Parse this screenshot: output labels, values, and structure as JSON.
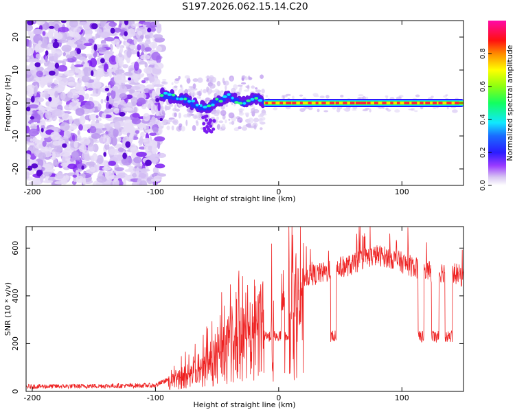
{
  "title": "S197.2026.062.15.14.C20",
  "colors": {
    "snr_line": "#ee2222",
    "background": "#ffffff",
    "axis": "#000000"
  },
  "chart_data": [
    {
      "type": "heatmap",
      "name": "spectrogram",
      "xlabel": "Height of straight line (km)",
      "ylabel": "Frequency (Hz)",
      "xlim": [
        -205,
        150
      ],
      "ylim": [
        -25,
        25
      ],
      "xticks": [
        -200,
        -100,
        0,
        100
      ],
      "yticks": [
        -20,
        -10,
        0,
        10,
        20
      ],
      "colorbar": {
        "label": "Normalized spectral amplitude",
        "range": [
          0,
          1
        ],
        "ticks": [
          0.0,
          0.2,
          0.4,
          0.6,
          0.8
        ],
        "colormap": "rainbow (white-purple-blue-cyan-green-yellow-red-magenta)"
      },
      "noise_region_x": [
        -205,
        -95
      ],
      "transition_region_x": [
        -95,
        -12
      ],
      "strong_tone": {
        "x_start": -12,
        "x_end": 150,
        "frequency_hz": 0,
        "normalized_amplitude": 0.9
      },
      "ridge": [
        [
          -95,
          2.5
        ],
        [
          -85,
          2.0
        ],
        [
          -75,
          1.0
        ],
        [
          -65,
          -1.0
        ],
        [
          -58,
          -1.5
        ],
        [
          -50,
          0.5
        ],
        [
          -40,
          2.0
        ],
        [
          -30,
          0.0
        ],
        [
          -20,
          1.5
        ],
        [
          -15,
          1.0
        ],
        [
          -10,
          0.0
        ]
      ]
    },
    {
      "type": "line",
      "name": "snr",
      "xlabel": "Height of straight line (km)",
      "ylabel": "SNR (10 * v/v)",
      "xlim": [
        -205,
        150
      ],
      "ylim": [
        0,
        690
      ],
      "xticks": [
        -200,
        -100,
        0,
        100
      ],
      "yticks": [
        0,
        200,
        400,
        600
      ],
      "series": [
        {
          "name": "SNR",
          "envelope": {
            "x": [
              -205,
              -100,
              -90,
              -80,
              -70,
              -60,
              -50,
              -40,
              -30,
              -20,
              -10,
              0,
              10,
              20,
              30,
              40,
              50,
              60,
              70,
              80,
              90,
              100,
              110,
              120,
              130,
              140,
              150
            ],
            "y": [
              20,
              25,
              50,
              90,
              110,
              160,
              220,
              300,
              300,
              360,
              400,
              420,
              460,
              480,
              490,
              500,
              520,
              530,
              560,
              570,
              560,
              540,
              520,
              500,
              500,
              500,
              480
            ]
          },
          "dropout_level": 230
        }
      ]
    }
  ]
}
